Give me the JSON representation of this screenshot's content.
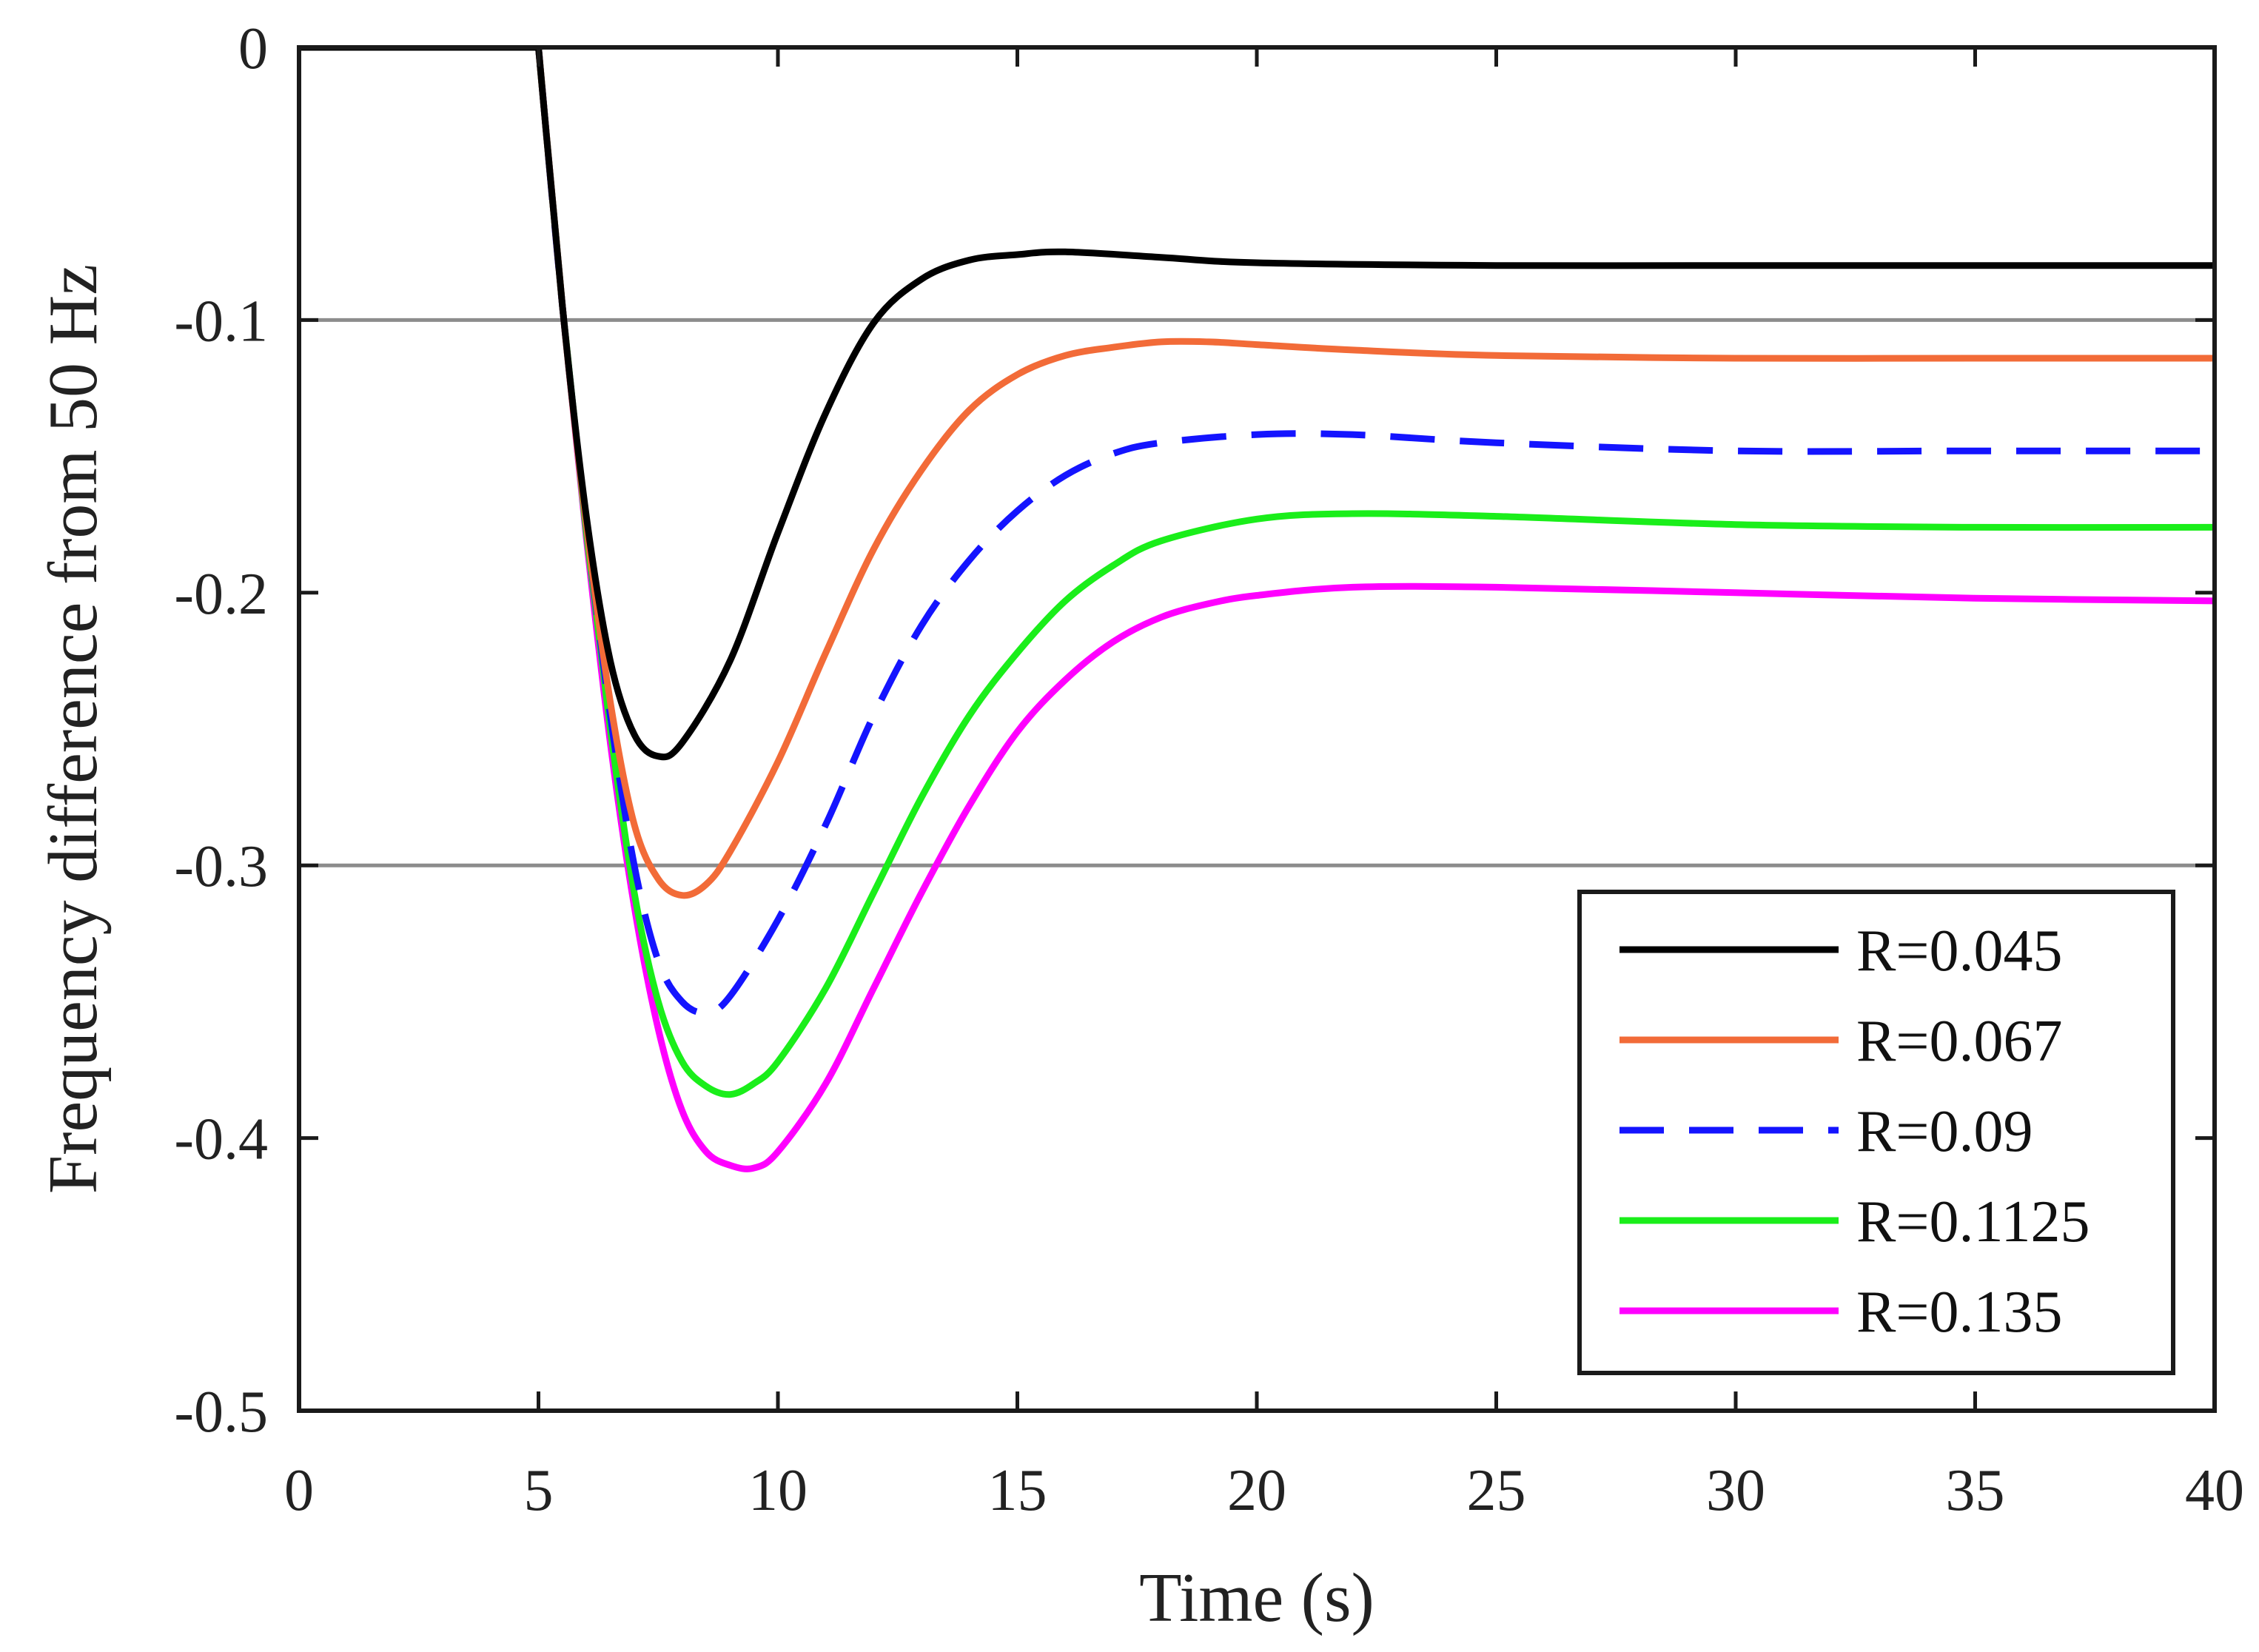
{
  "chart_data": {
    "type": "line",
    "title": "",
    "xlabel": "Time (s)",
    "ylabel": "Frequency difference from 50 Hz",
    "xlim": [
      0,
      40
    ],
    "ylim": [
      -0.5,
      0
    ],
    "xticks": [
      0,
      5,
      10,
      15,
      20,
      25,
      30,
      35,
      40
    ],
    "yticks": [
      0,
      -0.1,
      -0.2,
      -0.3,
      -0.4,
      -0.5
    ],
    "xtick_labels": [
      "0",
      "5",
      "10",
      "15",
      "20",
      "25",
      "30",
      "35",
      "40"
    ],
    "ytick_labels": [
      "0",
      "-0.1",
      "-0.2",
      "-0.3",
      "-0.4",
      "-0.5"
    ],
    "reference_lines": [
      {
        "y": -0.1,
        "color": "#8c8c8c"
      },
      {
        "y": -0.3,
        "color": "#8c8c8c"
      }
    ],
    "legend_position": "bottom-right",
    "grid": false,
    "series": [
      {
        "name": "R=0.045",
        "color": "#000000",
        "dash": false,
        "x": [
          0,
          5,
          5.5,
          6,
          6.5,
          7,
          7.5,
          8,
          9,
          10,
          11,
          12,
          13,
          14,
          15,
          16,
          18,
          20,
          25,
          30,
          35,
          40
        ],
        "y": [
          0,
          0,
          -0.095,
          -0.172,
          -0.225,
          -0.252,
          -0.26,
          -0.255,
          -0.225,
          -0.178,
          -0.134,
          -0.101,
          -0.085,
          -0.078,
          -0.076,
          -0.075,
          -0.077,
          -0.079,
          -0.08,
          -0.08,
          -0.08,
          -0.08
        ]
      },
      {
        "name": "R=0.067",
        "color": "#f26b38",
        "dash": false,
        "x": [
          0,
          5,
          5.5,
          6,
          6.5,
          7,
          7.5,
          8,
          8.5,
          9,
          10,
          11,
          12,
          13,
          14,
          15,
          16,
          17,
          18,
          19,
          20,
          22,
          25,
          30,
          35,
          40
        ],
        "y": [
          0,
          0,
          -0.095,
          -0.175,
          -0.24,
          -0.285,
          -0.305,
          -0.311,
          -0.307,
          -0.295,
          -0.262,
          -0.222,
          -0.184,
          -0.155,
          -0.133,
          -0.12,
          -0.113,
          -0.11,
          -0.108,
          -0.108,
          -0.109,
          -0.111,
          -0.113,
          -0.114,
          -0.114,
          -0.114
        ]
      },
      {
        "name": "R=0.09",
        "color": "#1414ff",
        "dash": true,
        "x": [
          0,
          5,
          5.5,
          6,
          6.5,
          7,
          7.5,
          8,
          8.5,
          9,
          10,
          11,
          12,
          13,
          14,
          15,
          16,
          17,
          18,
          20,
          22,
          25,
          30,
          35,
          40
        ],
        "y": [
          0,
          0,
          -0.095,
          -0.175,
          -0.245,
          -0.3,
          -0.335,
          -0.35,
          -0.354,
          -0.348,
          -0.32,
          -0.285,
          -0.245,
          -0.212,
          -0.188,
          -0.17,
          -0.157,
          -0.149,
          -0.145,
          -0.142,
          -0.142,
          -0.145,
          -0.148,
          -0.148,
          -0.148
        ]
      },
      {
        "name": "R=0.1125",
        "color": "#1aee1a",
        "dash": false,
        "x": [
          0,
          5,
          5.5,
          6,
          6.5,
          7,
          7.5,
          8,
          8.5,
          9,
          9.5,
          10,
          11,
          12,
          13,
          14,
          15,
          16,
          17,
          18,
          20,
          22,
          25,
          30,
          35,
          40
        ],
        "y": [
          0,
          0,
          -0.095,
          -0.178,
          -0.25,
          -0.31,
          -0.35,
          -0.372,
          -0.381,
          -0.384,
          -0.38,
          -0.372,
          -0.345,
          -0.31,
          -0.275,
          -0.245,
          -0.222,
          -0.203,
          -0.19,
          -0.181,
          -0.173,
          -0.171,
          -0.172,
          -0.175,
          -0.176,
          -0.176
        ]
      },
      {
        "name": "R=0.135",
        "color": "#ff00ff",
        "dash": false,
        "x": [
          0,
          5,
          5.5,
          6,
          6.5,
          7,
          7.5,
          8,
          8.5,
          9,
          9.5,
          10,
          11,
          12,
          13,
          14,
          15,
          16,
          17,
          18,
          19,
          20,
          22,
          25,
          30,
          35,
          40
        ],
        "y": [
          0,
          0,
          -0.095,
          -0.18,
          -0.255,
          -0.315,
          -0.36,
          -0.39,
          -0.405,
          -0.41,
          -0.411,
          -0.405,
          -0.38,
          -0.345,
          -0.31,
          -0.278,
          -0.251,
          -0.232,
          -0.218,
          -0.209,
          -0.204,
          -0.201,
          -0.198,
          -0.198,
          -0.2,
          -0.202,
          -0.203
        ]
      }
    ]
  }
}
